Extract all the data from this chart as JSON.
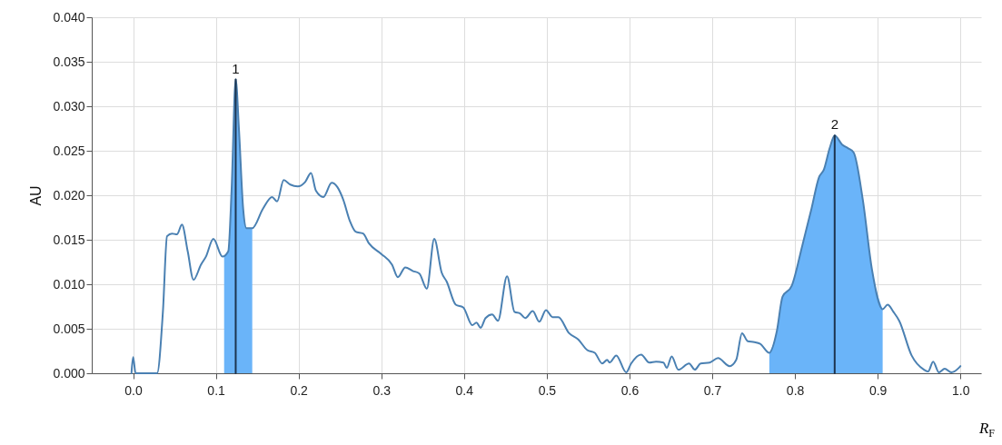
{
  "chart_data": {
    "type": "line",
    "xlabel": "R$_{F}$",
    "ylabel": "AU",
    "xlim": [
      -0.05,
      1.025
    ],
    "xticks": [
      {
        "value": 0,
        "label": "0.0"
      },
      {
        "value": 0.1,
        "label": "0.1"
      },
      {
        "value": 0.2,
        "label": "0.2"
      },
      {
        "value": 0.3,
        "label": "0.3"
      },
      {
        "value": 0.4,
        "label": "0.4"
      },
      {
        "value": 0.5,
        "label": "0.5"
      },
      {
        "value": 0.6,
        "label": "0.6"
      },
      {
        "value": 0.7,
        "label": "0.7"
      },
      {
        "value": 0.8,
        "label": "0.8"
      },
      {
        "value": 0.9,
        "label": "0.9"
      },
      {
        "value": 1,
        "label": "1.0"
      }
    ],
    "ylim": [
      0,
      0.04
    ],
    "yticks": [
      {
        "value": 0,
        "label": "0.000"
      },
      {
        "value": 0.005,
        "label": "0.005"
      },
      {
        "value": 0.01,
        "label": "0.010"
      },
      {
        "value": 0.015,
        "label": "0.015"
      },
      {
        "value": 0.02,
        "label": "0.020"
      },
      {
        "value": 0.025,
        "label": "0.025"
      },
      {
        "value": 0.03,
        "label": "0.030"
      },
      {
        "value": 0.035,
        "label": "0.035"
      },
      {
        "value": 0.04,
        "label": "0.040"
      }
    ],
    "grid": true,
    "annotations": [
      {
        "text": "1",
        "x": 0.124,
        "y": 0.033
      },
      {
        "text": "2",
        "x": 0.848,
        "y": 0.0267
      }
    ],
    "series": [
      {
        "type": "area",
        "color": "#6ab4f9",
        "x": [
          0.11,
          0.115,
          0.119,
          0.124,
          0.128,
          0.133,
          0.137,
          0.144
        ],
        "values": [
          0.0132,
          0.0137,
          0.0205,
          0.033,
          0.0273,
          0.0185,
          0.0163,
          0.0163
        ]
      },
      {
        "type": "area",
        "color": "#6ab4f9",
        "x": [
          0.769,
          0.778,
          0.785,
          0.796,
          0.809,
          0.82,
          0.829,
          0.835,
          0.842,
          0.848,
          0.857,
          0.864,
          0.871,
          0.882,
          0.893,
          0.906
        ],
        "values": [
          0.0023,
          0.0047,
          0.0086,
          0.0098,
          0.0144,
          0.0185,
          0.022,
          0.0229,
          0.0253,
          0.0267,
          0.0257,
          0.0253,
          0.0248,
          0.0195,
          0.0117,
          0.0072
        ]
      },
      {
        "type": "line",
        "color": "#4a80b2",
        "x": [
          -0.002,
          0.0,
          0.003,
          0.029,
          0.036,
          0.041,
          0.047,
          0.053,
          0.059,
          0.066,
          0.073,
          0.082,
          0.088,
          0.097,
          0.108,
          0.115,
          0.119,
          0.124,
          0.128,
          0.133,
          0.137,
          0.144,
          0.157,
          0.168,
          0.174,
          0.182,
          0.19,
          0.199,
          0.208,
          0.215,
          0.221,
          0.23,
          0.24,
          0.247,
          0.254,
          0.262,
          0.269,
          0.278,
          0.285,
          0.3,
          0.313,
          0.32,
          0.329,
          0.338,
          0.346,
          0.355,
          0.364,
          0.373,
          0.379,
          0.39,
          0.399,
          0.41,
          0.415,
          0.42,
          0.426,
          0.434,
          0.441,
          0.452,
          0.461,
          0.468,
          0.474,
          0.483,
          0.491,
          0.499,
          0.507,
          0.514,
          0.527,
          0.538,
          0.549,
          0.558,
          0.567,
          0.573,
          0.576,
          0.584,
          0.596,
          0.602,
          0.614,
          0.624,
          0.632,
          0.641,
          0.645,
          0.651,
          0.659,
          0.672,
          0.679,
          0.686,
          0.697,
          0.707,
          0.721,
          0.729,
          0.736,
          0.743,
          0.751,
          0.758,
          0.769,
          0.778,
          0.785,
          0.796,
          0.809,
          0.82,
          0.829,
          0.835,
          0.842,
          0.848,
          0.857,
          0.864,
          0.871,
          0.882,
          0.893,
          0.906,
          0.912,
          0.919,
          0.926,
          0.941,
          0.956,
          0.961,
          0.967,
          0.974,
          0.981,
          0.989,
          0.998,
          1.0
        ],
        "values": [
          0.0,
          0.0018,
          0.0,
          0.0,
          0.0069,
          0.0154,
          0.0157,
          0.0156,
          0.0167,
          0.0137,
          0.0105,
          0.0122,
          0.0131,
          0.0151,
          0.0131,
          0.0137,
          0.0205,
          0.033,
          0.0273,
          0.0185,
          0.0163,
          0.0163,
          0.0185,
          0.0198,
          0.0193,
          0.0217,
          0.0212,
          0.021,
          0.0215,
          0.0225,
          0.0205,
          0.0198,
          0.0214,
          0.0209,
          0.0195,
          0.0171,
          0.0159,
          0.0157,
          0.0146,
          0.0134,
          0.0122,
          0.0108,
          0.0119,
          0.0115,
          0.0112,
          0.0095,
          0.0151,
          0.0113,
          0.0103,
          0.0077,
          0.0074,
          0.0054,
          0.0057,
          0.0051,
          0.0062,
          0.0066,
          0.0059,
          0.0109,
          0.0069,
          0.0067,
          0.0062,
          0.007,
          0.0058,
          0.0071,
          0.0063,
          0.0063,
          0.0045,
          0.0038,
          0.0026,
          0.0023,
          0.0011,
          0.0015,
          0.0012,
          0.002,
          0.0001,
          0.0011,
          0.0021,
          0.0012,
          0.0013,
          0.0012,
          0.0006,
          0.0019,
          0.0004,
          0.0011,
          0.0004,
          0.0011,
          0.0012,
          0.0017,
          0.0008,
          0.0015,
          0.0045,
          0.0036,
          0.0035,
          0.0033,
          0.0023,
          0.0047,
          0.0086,
          0.0098,
          0.0144,
          0.0185,
          0.022,
          0.0229,
          0.0253,
          0.0267,
          0.0257,
          0.0253,
          0.0248,
          0.0195,
          0.0117,
          0.0072,
          0.0077,
          0.0069,
          0.0059,
          0.002,
          0.0004,
          0.0002,
          0.0013,
          0.0001,
          0.0005,
          0.0001,
          0.0006,
          0.0008
        ]
      },
      {
        "type": "line",
        "color": "#1c3550",
        "x": [
          0.124,
          0.124
        ],
        "values": [
          0,
          0.033
        ]
      },
      {
        "type": "line",
        "color": "#1c3550",
        "x": [
          0.848,
          0.848
        ],
        "values": [
          0,
          0.0267
        ]
      }
    ]
  }
}
